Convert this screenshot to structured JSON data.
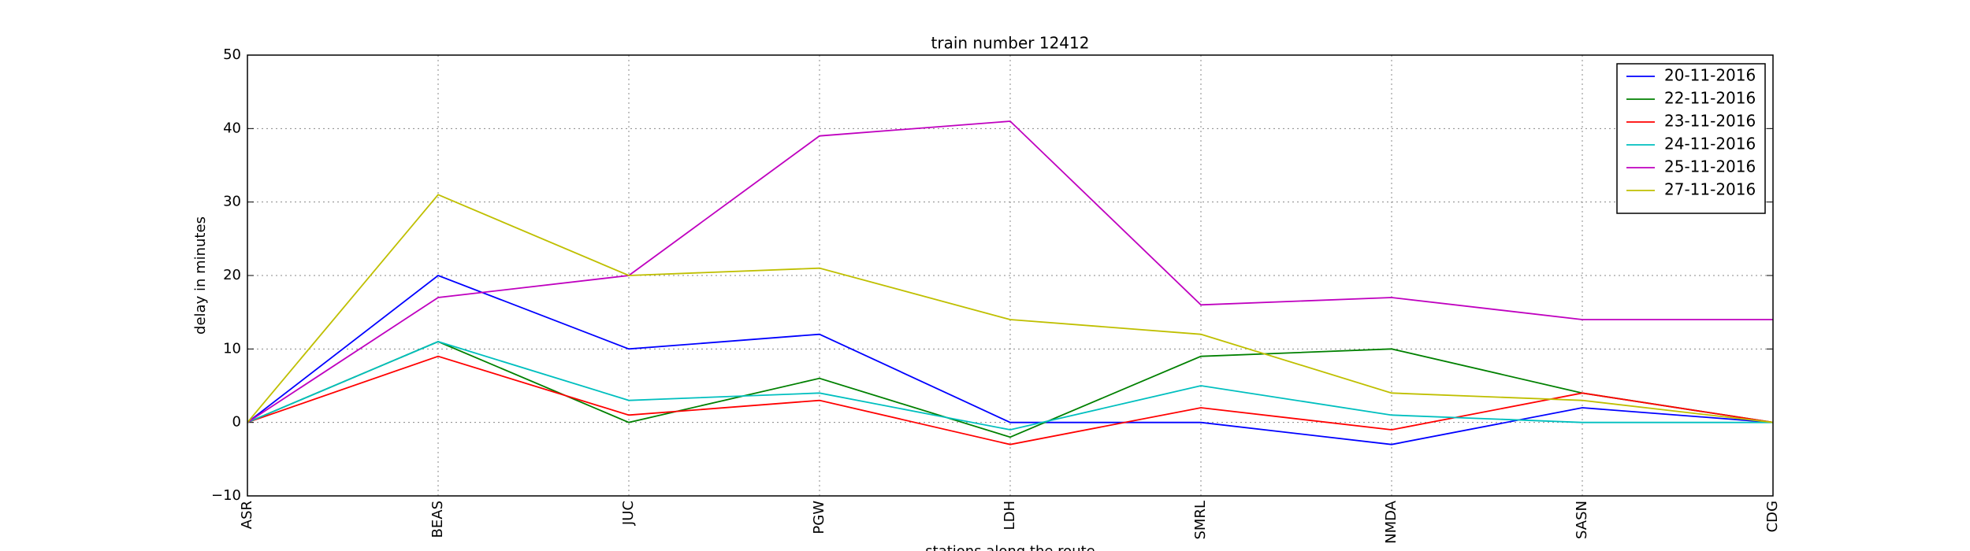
{
  "chart_data": {
    "type": "line",
    "title": "train number 12412",
    "x_label": "stations along the route",
    "y_label": "delay in minutes",
    "categories": [
      "ASR",
      "BEAS",
      "JUC",
      "PGW",
      "LDH",
      "SMRL",
      "NMDA",
      "SASN",
      "CDG"
    ],
    "series": [
      {
        "name": "20-11-2016",
        "color": "#0000ff",
        "values": [
          0,
          20,
          10,
          12,
          0,
          0,
          -3,
          2,
          0
        ]
      },
      {
        "name": "22-11-2016",
        "color": "#008000",
        "values": [
          0,
          11,
          0,
          6,
          -2,
          9,
          10,
          4,
          0
        ]
      },
      {
        "name": "23-11-2016",
        "color": "#ff0000",
        "values": [
          0,
          9,
          1,
          3,
          -3,
          2,
          -1,
          4,
          0
        ]
      },
      {
        "name": "24-11-2016",
        "color": "#00bfbf",
        "values": [
          0,
          11,
          3,
          4,
          -1,
          5,
          1,
          0,
          0
        ]
      },
      {
        "name": "25-11-2016",
        "color": "#bf00bf",
        "values": [
          0,
          17,
          20,
          39,
          41,
          16,
          17,
          14,
          14
        ]
      },
      {
        "name": "27-11-2016",
        "color": "#bfbf00",
        "values": [
          0,
          31,
          20,
          21,
          14,
          12,
          4,
          3,
          0
        ]
      }
    ],
    "ylim": [
      -10,
      50
    ],
    "yticks": [
      {
        "value": -10,
        "label": "−10"
      },
      0,
      10,
      20,
      30,
      40,
      50
    ],
    "grid": true,
    "legend": "upper right"
  }
}
